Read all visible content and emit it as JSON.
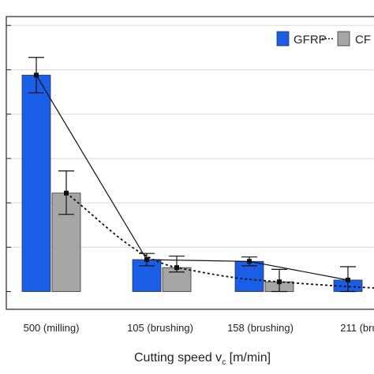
{
  "chart_data": {
    "type": "bar",
    "categories": [
      "500 (milling)",
      "105 (brushing)",
      "158 (brushing)",
      "211 (bru"
    ],
    "series": [
      {
        "name": "GFRP",
        "color": "#1a5ee8",
        "values": [
          122,
          18,
          17,
          6.5
        ],
        "err_low": [
          112,
          14.5,
          14.5,
          0
        ],
        "err_high": [
          132,
          21.5,
          19.5,
          14
        ]
      },
      {
        "name": "CF",
        "color": "#a6a6a6",
        "values": [
          55.5,
          13.5,
          5.5,
          null
        ],
        "err_low": [
          43.5,
          11,
          0,
          null
        ],
        "err_high": [
          68,
          20,
          12.5,
          null
        ]
      }
    ],
    "lines": [
      {
        "series": "GFRP",
        "style": "solid"
      },
      {
        "series": "CF",
        "style": "dotted"
      }
    ],
    "xlabel_main": "Cutting speed v",
    "xlabel_sub": "c",
    "xlabel_unit": " [m/min]",
    "ylim": [
      -10,
      155
    ],
    "grid": true,
    "legend_position": "top-right"
  }
}
